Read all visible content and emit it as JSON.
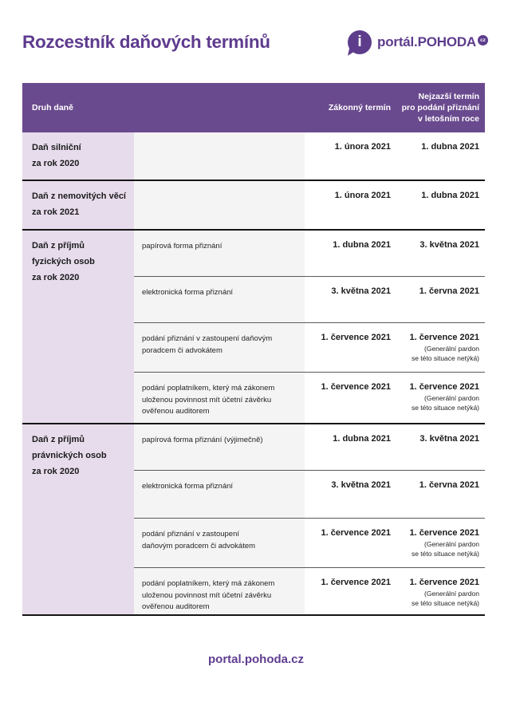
{
  "page": {
    "title": "Rozcestník daňových termínů",
    "footer_url": "portal.pohoda.cz"
  },
  "logo": {
    "info_glyph": "i",
    "name_lower": "portál.",
    "name_upper": "POHODA",
    "badge": "cz"
  },
  "colors": {
    "brand_purple": "#5d3c8c",
    "header_bg": "#6a4a8e",
    "tax_col_bg": "#e7dcec",
    "desc_col_bg": "#f5f4f5",
    "line_black": "#151515"
  },
  "table": {
    "headers": {
      "col_tax": "Druh daně",
      "col_legal": "Zákonný termín",
      "col_latest": "Nejzazší termín\npro podání přiznání\nv letošním roce"
    },
    "sections": [
      {
        "tax": "Daň silniční\nza rok 2020",
        "rows": [
          {
            "desc": "",
            "legal": "1. února 2021",
            "latest": "1. dubna 2021",
            "note": ""
          }
        ]
      },
      {
        "tax": "Daň z nemovitých věcí\nza rok 2021",
        "rows": [
          {
            "desc": "",
            "legal": "1. února 2021",
            "latest": "1. dubna 2021",
            "note": ""
          }
        ]
      },
      {
        "tax": "Daň z příjmů\nfyzických osob\nza rok 2020",
        "rows": [
          {
            "desc": "papírová forma přiznání",
            "legal": "1. dubna 2021",
            "latest": "3. května 2021",
            "note": ""
          },
          {
            "desc": "elektronická forma přiznání",
            "legal": "3. května 2021",
            "latest": "1. června 2021",
            "note": ""
          },
          {
            "desc": "podání přiznání v zastoupení daňovým poradcem či advokátem",
            "legal": "1. července 2021",
            "latest": "1. července 2021",
            "note": "(Generální pardon\nse této situace netýká)"
          },
          {
            "desc": "podání poplatníkem, který má zákonem uloženou povinnost mít účetní závěrku ověřenou auditorem",
            "legal": "1. července 2021",
            "latest": "1. července 2021",
            "note": "(Generální pardon\nse této situace netýká)"
          }
        ]
      },
      {
        "tax": "Daň z příjmů\nprávnických osob\nza rok 2020",
        "rows": [
          {
            "desc": "papírová forma přiznání (výjimečně)",
            "legal": "1. dubna 2021",
            "latest": "3. května 2021",
            "note": ""
          },
          {
            "desc": "elektronická forma přiznání",
            "legal": "3. května 2021",
            "latest": "1. června 2021",
            "note": ""
          },
          {
            "desc": "podání přiznání v zastoupení\ndaňovým poradcem či advokátem",
            "legal": "1. července 2021",
            "latest": "1. července 2021",
            "note": "(Generální pardon\nse této situace netýká)"
          },
          {
            "desc": "podání poplatníkem, který má zákonem uloženou povinnost mít účetní závěrku ověřenou auditorem",
            "legal": "1. července 2021",
            "latest": "1. července 2021",
            "note": "(Generální pardon\nse této situace netýká)"
          }
        ]
      }
    ]
  }
}
